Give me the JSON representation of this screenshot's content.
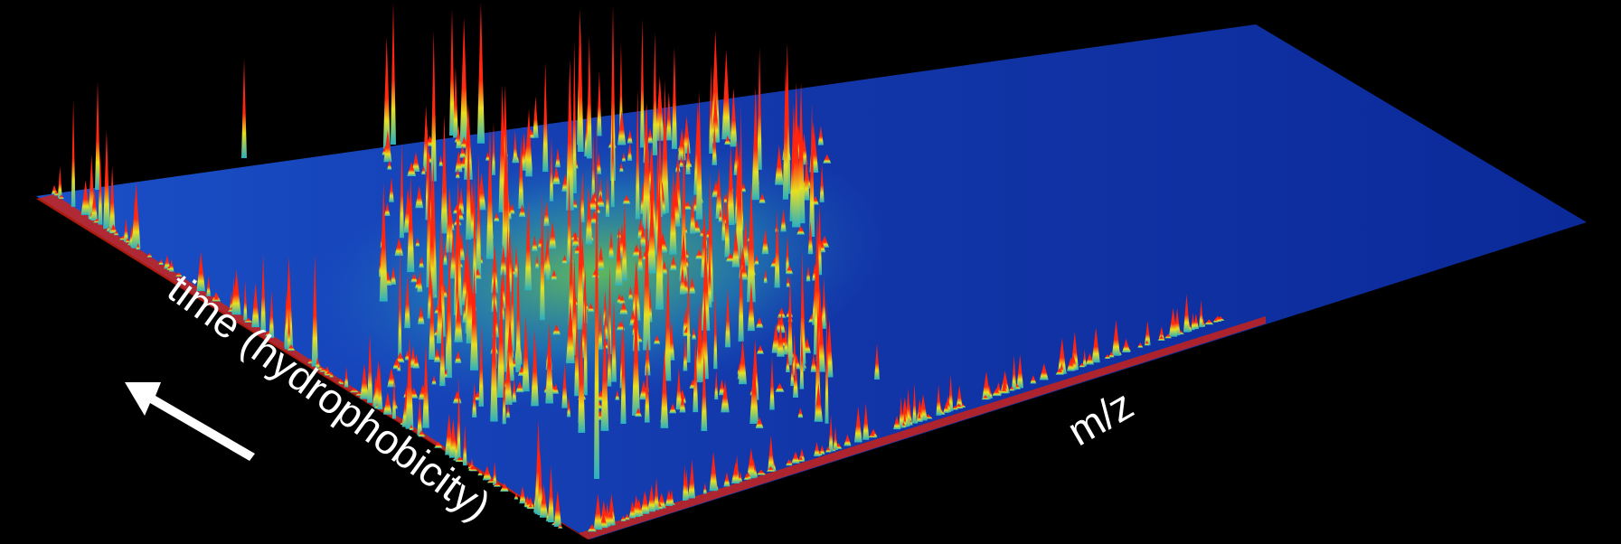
{
  "labels": {
    "time_axis": "time (hydrophobicity)",
    "mz_axis": "m/z"
  }
}
